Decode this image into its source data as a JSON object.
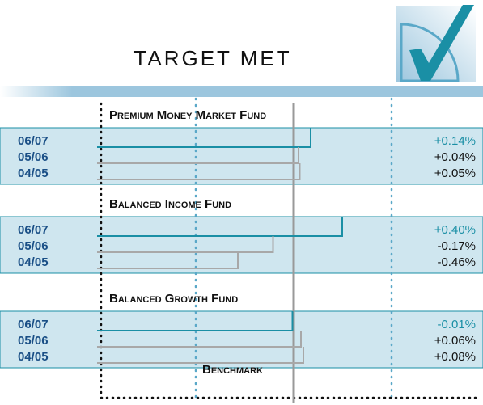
{
  "chart_data": {
    "type": "bar",
    "title": "TARGET MET",
    "benchmark": "Benchmark",
    "groups": [
      {
        "name": "Premium Money Market Fund",
        "categories": [
          "06/07",
          "05/06",
          "04/05"
        ],
        "values": [
          0.14,
          0.04,
          0.05
        ],
        "value_labels": [
          "+0.14%",
          "+0.04%",
          "+0.05%"
        ]
      },
      {
        "name": "Balanced Income Fund",
        "categories": [
          "06/07",
          "05/06",
          "04/05"
        ],
        "values": [
          0.4,
          -0.17,
          -0.46
        ],
        "value_labels": [
          "+0.40%",
          "-0.17%",
          "-0.46%"
        ]
      },
      {
        "name": "Balanced Growth Fund",
        "categories": [
          "06/07",
          "05/06",
          "04/05"
        ],
        "values": [
          -0.01,
          0.06,
          0.08
        ],
        "value_labels": [
          "-0.01%",
          "+0.06%",
          "+0.08%"
        ]
      }
    ],
    "colors": {
      "current": "#1a8fa5",
      "previous": "#a8a8a8"
    }
  }
}
